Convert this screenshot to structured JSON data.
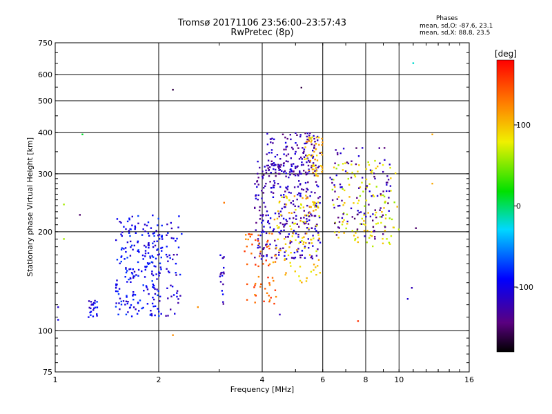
{
  "header": {
    "title_line1": "Tromsø 20171106 23:56:00–23:57:43",
    "title_line2": "RwPretec (8p)",
    "phases_label": "Phases",
    "phases_o": "mean, sd,O: -87.6, 23.1",
    "phases_x": "mean, sd,X:  88.8, 23.5"
  },
  "chart_data": {
    "type": "scatter",
    "xlabel": "Frequency [MHz]",
    "ylabel": "Stationary phase Virtual Height [km]",
    "x_scale": "log",
    "y_scale": "log",
    "xlim": [
      1,
      16
    ],
    "ylim": [
      75,
      750
    ],
    "x_ticks": [
      1,
      2,
      4,
      6,
      8,
      10,
      16
    ],
    "x_tick_labels": [
      "1",
      "2",
      "4",
      "6",
      "8",
      "10",
      "16"
    ],
    "y_ticks": [
      75,
      100,
      200,
      300,
      400,
      500,
      600,
      750
    ],
    "y_tick_labels": [
      "75",
      "100",
      "200",
      "300",
      "400",
      "500",
      "600",
      "750"
    ],
    "grid": true,
    "colorbar": {
      "label": "[deg]",
      "range": [
        -180,
        180
      ],
      "ticks": [
        100,
        0,
        -100
      ],
      "tick_labels": [
        "100",
        "0",
        "-100"
      ]
    },
    "clusters": [
      {
        "name": "O1",
        "f": [
          1.5,
          2.05
        ],
        "h": [
          110,
          225
        ],
        "phase": -95,
        "count": 230
      },
      {
        "name": "O1b",
        "f": [
          1.25,
          1.33
        ],
        "h": [
          110,
          125
        ],
        "phase": -95,
        "count": 22
      },
      {
        "name": "O2",
        "f": [
          2.1,
          2.35
        ],
        "h": [
          110,
          230
        ],
        "phase": -105,
        "count": 45
      },
      {
        "name": "O3",
        "f": [
          3.0,
          3.1
        ],
        "h": [
          120,
          170
        ],
        "phase": -115,
        "count": 18
      },
      {
        "name": "O4",
        "f": [
          3.8,
          5.9
        ],
        "h": [
          165,
          330
        ],
        "phase": -120,
        "count": 300
      },
      {
        "name": "O5",
        "f": [
          4.1,
          5.9
        ],
        "h": [
          295,
          400
        ],
        "phase": -125,
        "count": 120
      },
      {
        "name": "X1",
        "f": [
          3.55,
          4.4
        ],
        "h": [
          120,
          200
        ],
        "phase": 140,
        "count": 60
      },
      {
        "name": "X2",
        "f": [
          4.3,
          5.9
        ],
        "h": [
          140,
          260
        ],
        "phase": 95,
        "count": 110
      },
      {
        "name": "X3",
        "f": [
          5.3,
          6.0
        ],
        "h": [
          295,
          390
        ],
        "phase": 105,
        "count": 50
      },
      {
        "name": "X4",
        "f": [
          6.4,
          10.0
        ],
        "h": [
          180,
          330
        ],
        "phase": 80,
        "count": 120
      },
      {
        "name": "O6",
        "f": [
          6.3,
          9.5
        ],
        "h": [
          190,
          360
        ],
        "phase": -130,
        "count": 100
      }
    ],
    "points": [
      {
        "f": 1.2,
        "h": 395,
        "phase": 10
      },
      {
        "f": 2.2,
        "h": 540,
        "phase": -160
      },
      {
        "f": 5.2,
        "h": 548,
        "phase": -160
      },
      {
        "f": 11.0,
        "h": 650,
        "phase": -20
      },
      {
        "f": 12.5,
        "h": 395,
        "phase": 110
      },
      {
        "f": 12.5,
        "h": 280,
        "phase": 110
      },
      {
        "f": 11.2,
        "h": 205,
        "phase": -150
      },
      {
        "f": 10.9,
        "h": 135,
        "phase": -120
      },
      {
        "f": 10.6,
        "h": 125,
        "phase": -110
      },
      {
        "f": 4.5,
        "h": 112,
        "phase": -120
      },
      {
        "f": 7.6,
        "h": 107,
        "phase": 160
      },
      {
        "f": 2.2,
        "h": 97,
        "phase": 120
      },
      {
        "f": 3.1,
        "h": 245,
        "phase": 130
      },
      {
        "f": 2.6,
        "h": 118,
        "phase": 120
      },
      {
        "f": 1.06,
        "h": 242,
        "phase": 60
      },
      {
        "f": 1.06,
        "h": 190,
        "phase": 60
      },
      {
        "f": 1.18,
        "h": 225,
        "phase": -150
      },
      {
        "f": 1.02,
        "h": 118,
        "phase": -110
      },
      {
        "f": 1.02,
        "h": 108,
        "phase": -100
      }
    ]
  }
}
